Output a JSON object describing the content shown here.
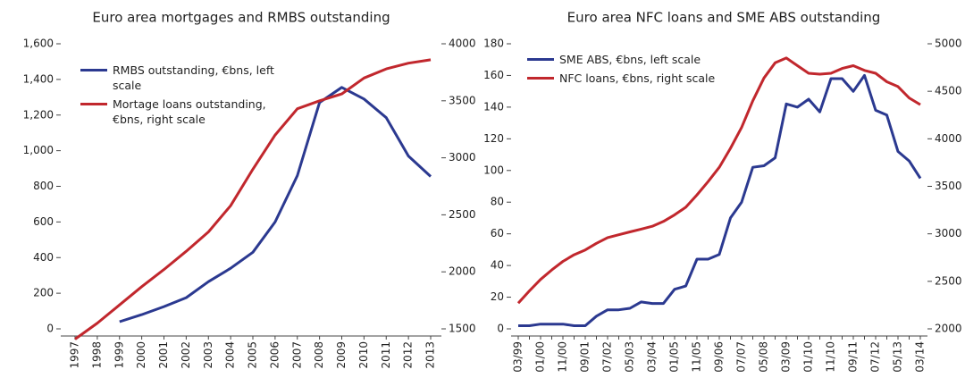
{
  "chart_data": [
    {
      "type": "line",
      "title": "Euro area mortgages and RMBS outstanding",
      "categories": [
        "1997",
        "1998",
        "1999",
        "2000",
        "2001",
        "2002",
        "2003",
        "2004",
        "2005",
        "2006",
        "2007",
        "2008",
        "2009",
        "2010",
        "2011",
        "2012",
        "2013"
      ],
      "series": [
        {
          "name": "RMBS outstanding, €bns, left scale",
          "color": "#2b3990",
          "values": [
            null,
            null,
            40,
            80,
            125,
            175,
            265,
            340,
            430,
            600,
            860,
            1270,
            1355,
            1290,
            1185,
            970,
            855
          ]
        },
        {
          "name": "Mortage loans outstanding, €bns, right scale",
          "color": "#c1272d",
          "axis": "y2",
          "values": [
            1410,
            1550,
            1710,
            1870,
            2020,
            2180,
            2350,
            2580,
            2900,
            3200,
            3430,
            3500,
            3560,
            3700,
            3780,
            3830,
            3860
          ]
        }
      ],
      "ylim": [
        0,
        1600
      ],
      "yticks": [
        0,
        200,
        400,
        600,
        800,
        {
          "value": 1000,
          "label": "1,000"
        },
        {
          "value": 1200,
          "label": "1,200"
        },
        {
          "value": 1400,
          "label": "1,400"
        },
        {
          "value": 1600,
          "label": "1,600"
        }
      ],
      "y2lim": [
        1500,
        4000
      ],
      "y2ticks": [
        1500,
        2000,
        2500,
        3000,
        3500,
        4000
      ]
    },
    {
      "type": "line",
      "title": "Euro area NFC loans and SME ABS outstanding",
      "categories": [
        "03/99",
        null,
        "01/00",
        null,
        "11/00",
        null,
        "09/01",
        null,
        "07/02",
        null,
        "05/03",
        null,
        "03/04",
        null,
        "01/05",
        null,
        "11/05",
        null,
        "09/06",
        null,
        "07/07",
        null,
        "05/08",
        null,
        "03/09",
        null,
        "01/10",
        null,
        "11/10",
        null,
        "09/11",
        null,
        "07/12",
        null,
        "05/13",
        null,
        "03/14"
      ],
      "series": [
        {
          "name": "SME ABS, €bns, left scale",
          "color": "#2b3990",
          "values": [
            2,
            2,
            3,
            3,
            3,
            2,
            2,
            8,
            12,
            12,
            13,
            17,
            16,
            16,
            25,
            27,
            44,
            44,
            47,
            70,
            80,
            102,
            103,
            108,
            142,
            140,
            145,
            137,
            158,
            158,
            150,
            160,
            138,
            135,
            112,
            106,
            95
          ]
        },
        {
          "name": "NFC loans, €bns, right scale",
          "color": "#c1272d",
          "axis": "y2",
          "values": [
            2270,
            2400,
            2520,
            2620,
            2710,
            2780,
            2830,
            2900,
            2960,
            2990,
            3020,
            3050,
            3080,
            3130,
            3200,
            3280,
            3410,
            3550,
            3700,
            3900,
            4120,
            4400,
            4640,
            4800,
            4850,
            4770,
            4690,
            4680,
            4690,
            4740,
            4770,
            4720,
            4690,
            4600,
            4550,
            4430,
            4360
          ]
        }
      ],
      "ylim": [
        0,
        180
      ],
      "yticks": [
        0,
        20,
        40,
        60,
        80,
        100,
        120,
        140,
        160,
        180
      ],
      "y2lim": [
        2000,
        5000
      ],
      "y2ticks": [
        2000,
        2500,
        3000,
        3500,
        4000,
        4500,
        5000
      ]
    }
  ]
}
